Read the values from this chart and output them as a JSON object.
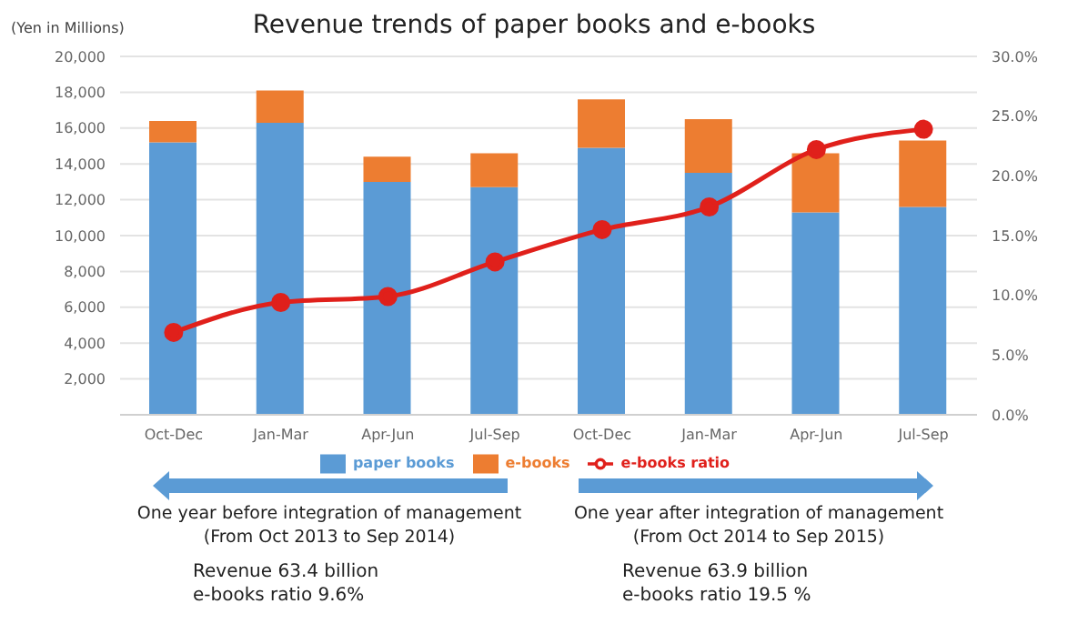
{
  "chart_data": {
    "type": "bar",
    "title": "Revenue trends of paper books and e-books",
    "ylabel": "(Yen in Millions)",
    "categories": [
      "Oct-Dec",
      "Jan-Mar",
      "Apr-Jun",
      "Jul-Sep",
      "Oct-Dec",
      "Jan-Mar",
      "Apr-Jun",
      "Jul-Sep"
    ],
    "series": [
      {
        "name": "paper books",
        "color": "#5b9bd5",
        "values": [
          15200,
          16300,
          13000,
          12700,
          14900,
          13500,
          11300,
          11600
        ]
      },
      {
        "name": "e-books",
        "color": "#ed7d31",
        "values": [
          1200,
          1800,
          1400,
          1900,
          2700,
          3000,
          3300,
          3700
        ]
      },
      {
        "name": "e-books ratio",
        "type": "line",
        "axis": "y2",
        "color": "#e0201b",
        "values": [
          6.9,
          9.4,
          9.9,
          12.8,
          15.5,
          17.4,
          22.2,
          23.9
        ]
      }
    ],
    "stacked": true,
    "ylim": [
      0,
      20000
    ],
    "yticks": [
      {
        "value": 2000,
        "label": "2,000"
      },
      {
        "value": 4000,
        "label": "4,000"
      },
      {
        "value": 6000,
        "label": "6,000"
      },
      {
        "value": 8000,
        "label": "8,000"
      },
      {
        "value": 10000,
        "label": "10,000"
      },
      {
        "value": 12000,
        "label": "12,000"
      },
      {
        "value": 14000,
        "label": "14,000"
      },
      {
        "value": 16000,
        "label": "16,000"
      },
      {
        "value": 18000,
        "label": "18,000"
      },
      {
        "value": 20000,
        "label": "20,000"
      }
    ],
    "y2lim": [
      0,
      30
    ],
    "y2ticks": [
      {
        "value": 0,
        "label": "0.0%"
      },
      {
        "value": 5,
        "label": "5.0%"
      },
      {
        "value": 10,
        "label": "10.0%"
      },
      {
        "value": 15,
        "label": "15.0%"
      },
      {
        "value": 20,
        "label": "20.0%"
      },
      {
        "value": 25,
        "label": "25.0%"
      },
      {
        "value": 30,
        "label": "30.0%"
      }
    ],
    "grid": "y",
    "legend": "bottom",
    "marker": "circle",
    "annotations": [
      "One year before integration of management",
      "(From Oct 2013 to Sep 2014)",
      "Revenue 63.4 billion",
      "e-books ratio 9.6%",
      "One year after integration of management",
      "(From Oct 2014 to Sep 2015)",
      "Revenue 63.9 billion",
      "e-books ratio 19.5 %"
    ]
  }
}
